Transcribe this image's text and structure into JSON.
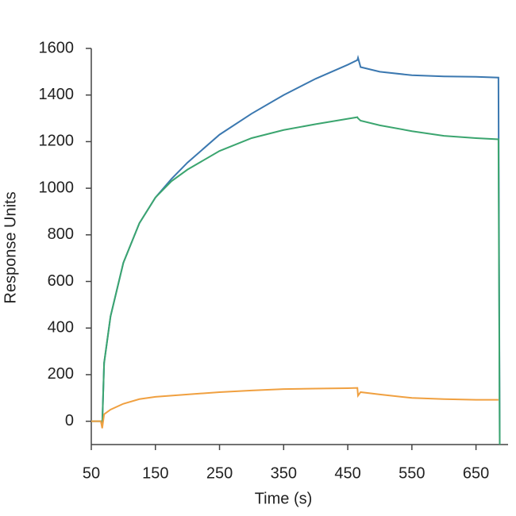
{
  "chart_data": {
    "type": "line",
    "xlabel": "Time (s)",
    "ylabel": "Response Units",
    "x": [
      50,
      65,
      67,
      70,
      80,
      100,
      125,
      150,
      175,
      200,
      250,
      300,
      350,
      400,
      450,
      465,
      466,
      470,
      500,
      550,
      600,
      650,
      685,
      687
    ],
    "series": [
      {
        "color": "#3b78b0",
        "values": [
          0,
          0,
          -20,
          250,
          450,
          680,
          850,
          960,
          1040,
          1110,
          1230,
          1320,
          1400,
          1470,
          1530,
          1550,
          1560,
          1520,
          1500,
          1485,
          1480,
          1478,
          1475,
          -100
        ]
      },
      {
        "color": "#3ba56f",
        "values": [
          0,
          0,
          -20,
          250,
          450,
          680,
          850,
          960,
          1030,
          1080,
          1160,
          1215,
          1250,
          1275,
          1298,
          1305,
          1300,
          1290,
          1270,
          1245,
          1225,
          1215,
          1210,
          -100
        ]
      },
      {
        "color": "#f0a040",
        "values": [
          0,
          0,
          -30,
          30,
          50,
          75,
          95,
          105,
          110,
          115,
          125,
          132,
          138,
          140,
          142,
          143,
          110,
          125,
          115,
          100,
          95,
          92,
          92,
          null
        ]
      }
    ],
    "xlim": [
      50,
      700
    ],
    "ylim": [
      -100,
      1600
    ],
    "xticks": [
      50,
      150,
      250,
      350,
      450,
      550,
      650
    ],
    "yticks": [
      0,
      200,
      400,
      600,
      800,
      1000,
      1200,
      1400,
      1600
    ]
  }
}
